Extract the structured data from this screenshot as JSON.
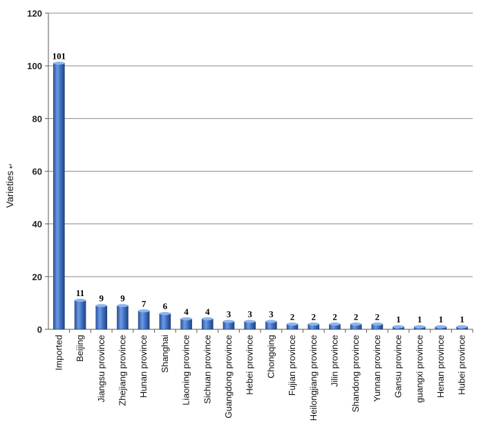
{
  "chart_data": {
    "type": "bar",
    "ylabel": "Varieties",
    "ylabel_marker": "↵",
    "ylim": [
      0,
      120
    ],
    "yticks": [
      0,
      20,
      40,
      60,
      80,
      100,
      120
    ],
    "grid": true,
    "bar_color": "#3f6fc2",
    "categories": [
      "Imported",
      "Beijing",
      "Jiangsu province",
      "Zhejiang province",
      "Hunan province",
      "Shanghai",
      "Liaoning province",
      "Sichuan province",
      "Guangdong province",
      "Hebei province",
      "Chongqing",
      "Fujian province",
      "Heilongjiang province",
      "Jilin province",
      "Shandong province",
      "Yunnan province",
      "Gansu province",
      "guangxi province",
      "Henan province",
      "Hubei province"
    ],
    "values": [
      101,
      11,
      9,
      9,
      7,
      6,
      4,
      4,
      3,
      3,
      3,
      2,
      2,
      2,
      2,
      2,
      1,
      1,
      1,
      1
    ]
  }
}
